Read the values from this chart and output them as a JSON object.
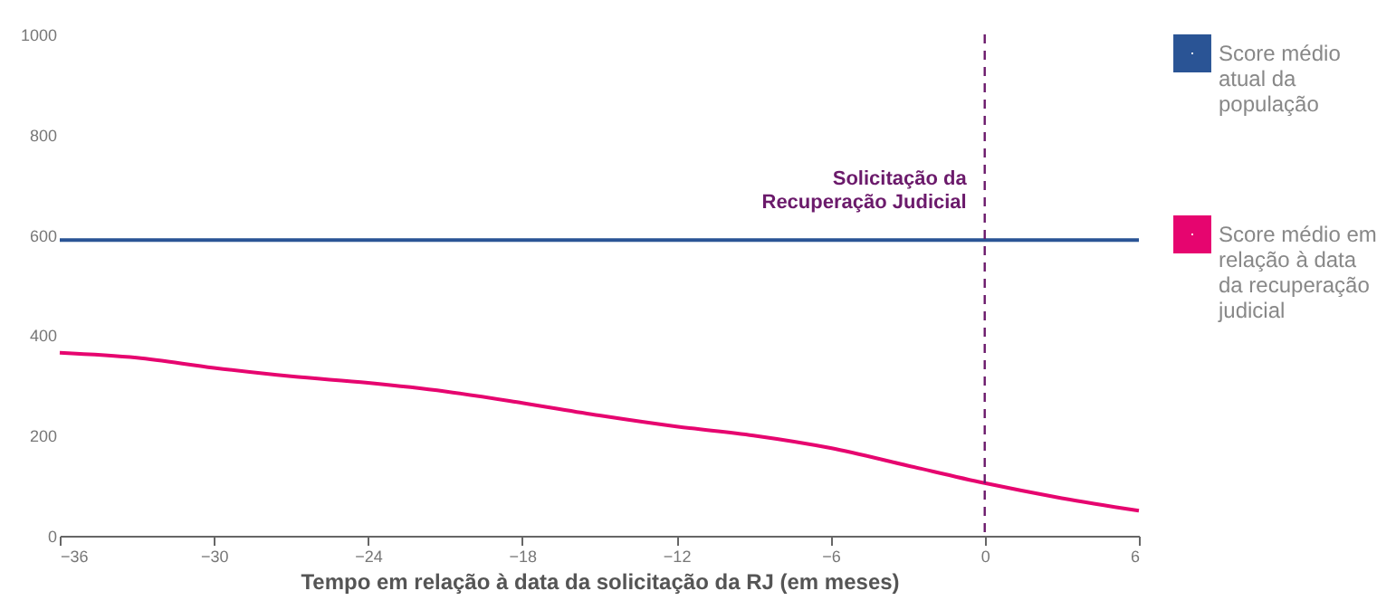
{
  "chart_data": {
    "type": "line",
    "xlabel": "Tempo em relação à data da solicitação da RJ (em meses)",
    "xlim": [
      -36,
      6
    ],
    "xticks": [
      -36,
      -30,
      -24,
      -18,
      -12,
      -6,
      0,
      6
    ],
    "ylim": [
      0,
      1000
    ],
    "yticks": [
      0,
      200,
      400,
      600,
      800,
      1000
    ],
    "grid": false,
    "legend": "right",
    "line_style": "solid",
    "marker": "none",
    "series": [
      {
        "name": "Score médio atual da população",
        "color": "#2a5495",
        "x": [
          -36,
          6
        ],
        "values": [
          590,
          590
        ]
      },
      {
        "name": "Score médio em relação à data da recuperação judicial",
        "color": "#e6056f",
        "x": [
          -36,
          -33,
          -30,
          -27,
          -24,
          -21,
          -18,
          -15,
          -12,
          -9,
          -6,
          -3,
          0,
          3,
          6
        ],
        "values": [
          365,
          355,
          335,
          318,
          305,
          288,
          265,
          240,
          218,
          200,
          175,
          140,
          105,
          75,
          50
        ]
      }
    ],
    "ref_lines": [
      {
        "axis": "x",
        "value": 0,
        "label": "Solicitação da\nRecuperação Judicial",
        "color": "#6b1a6b",
        "line_style": "dashed"
      }
    ]
  }
}
